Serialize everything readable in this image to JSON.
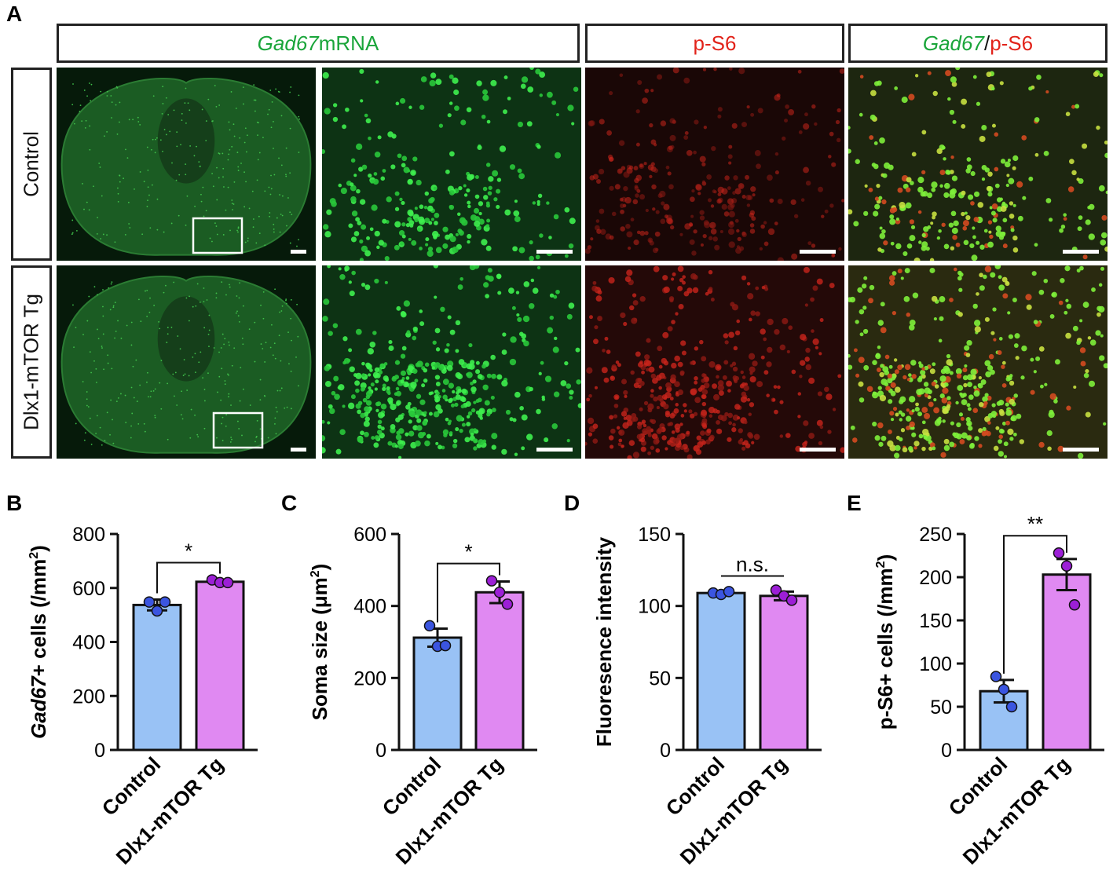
{
  "figure_a": {
    "letter": "A",
    "columns": [
      {
        "italic_part": "Gad67",
        "plain_part": " mRNA"
      },
      {
        "red_part": "p-S6"
      },
      {
        "italic_part": "Gad67",
        "slash": "/",
        "red_part": "p-S6"
      }
    ],
    "rows": [
      "Control",
      "Dlx1-mTOR Tg"
    ],
    "colors": {
      "green": "#1aa53a",
      "red": "#e2231a",
      "bg_dark": "#0a1a0c"
    }
  },
  "chart_data": [
    {
      "letter": "B",
      "type": "bar",
      "categories": [
        "Control",
        "Dlx1-mTOR Tg"
      ],
      "values": [
        537,
        623
      ],
      "errors": [
        20,
        7
      ],
      "points": [
        [
          548,
          515,
          548
        ],
        [
          630,
          620,
          620
        ]
      ],
      "ylabel_italic": "Gad67",
      "ylabel_plain": "+ cells (/mm",
      "ylabel_sup": "2",
      "ylabel_end": ")",
      "ylim": [
        0,
        800
      ],
      "yticks": [
        "0",
        "200",
        "400",
        "600",
        "800"
      ],
      "significance": "*",
      "colors": [
        "#99c2f5",
        "#e089f2"
      ],
      "point_colors": [
        "#3b55e0",
        "#9c1fd6"
      ]
    },
    {
      "letter": "C",
      "type": "bar",
      "categories": [
        "Control",
        "Dlx1-mTOR Tg"
      ],
      "values": [
        312,
        438
      ],
      "errors": [
        25,
        30
      ],
      "points": [
        [
          345,
          288,
          290
        ],
        [
          470,
          438,
          405
        ]
      ],
      "ylabel_plain": "Soma size (μm",
      "ylabel_sup": "2",
      "ylabel_end": ")",
      "ylim": [
        0,
        600
      ],
      "yticks": [
        "0",
        "200",
        "400",
        "600"
      ],
      "significance": "*",
      "colors": [
        "#99c2f5",
        "#e089f2"
      ],
      "point_colors": [
        "#3b55e0",
        "#9c1fd6"
      ]
    },
    {
      "letter": "D",
      "type": "bar",
      "categories": [
        "Control",
        "Dlx1-mTOR Tg"
      ],
      "values": [
        109,
        107
      ],
      "errors": [
        1,
        3
      ],
      "points": [
        [
          109,
          108,
          110
        ],
        [
          111,
          107,
          104
        ]
      ],
      "ylabel_plain": "Fluoresence intensity",
      "ylim": [
        0,
        150
      ],
      "yticks": [
        "0",
        "50",
        "100",
        "150"
      ],
      "significance": "n.s.",
      "colors": [
        "#99c2f5",
        "#e089f2"
      ],
      "point_colors": [
        "#3b55e0",
        "#9c1fd6"
      ]
    },
    {
      "letter": "E",
      "type": "bar",
      "categories": [
        "Control",
        "Dlx1-mTOR Tg"
      ],
      "values": [
        68,
        203
      ],
      "errors": [
        13,
        18
      ],
      "points": [
        [
          85,
          70,
          50
        ],
        [
          228,
          213,
          168
        ]
      ],
      "ylabel_plain": "p-S6+ cells (/mm",
      "ylabel_sup": "2",
      "ylabel_end": ")",
      "ylim": [
        0,
        250
      ],
      "yticks": [
        "0",
        "50",
        "100",
        "150",
        "200",
        "250"
      ],
      "significance": "**",
      "colors": [
        "#99c2f5",
        "#e089f2"
      ],
      "point_colors": [
        "#3b55e0",
        "#9c1fd6"
      ]
    }
  ]
}
